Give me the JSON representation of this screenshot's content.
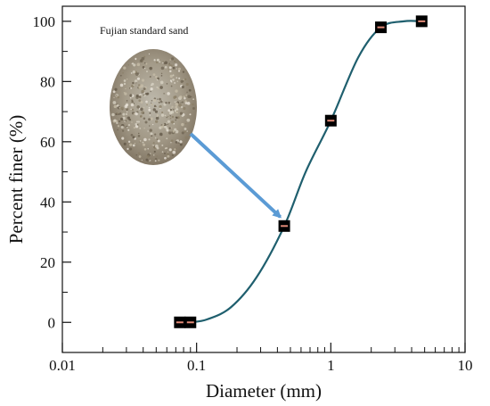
{
  "chart_data": {
    "type": "scatter",
    "xlabel": "Diameter (mm)",
    "ylabel": "Percent finer (%)",
    "xscale": "log",
    "xlim": [
      0.01,
      10
    ],
    "ylim": [
      -10,
      105
    ],
    "x_ticks": [
      0.01,
      0.1,
      1,
      10
    ],
    "x_tick_labels": [
      "0.01",
      "0.1",
      "1",
      "10"
    ],
    "y_ticks": [
      0,
      20,
      40,
      60,
      80,
      100
    ],
    "y_tick_labels": [
      "0",
      "20",
      "40",
      "60",
      "80",
      "100"
    ],
    "grid": false,
    "series": [
      {
        "points": [
          {
            "x": 0.075,
            "y": 0
          },
          {
            "x": 0.09,
            "y": 0
          },
          {
            "x": 0.45,
            "y": 32
          },
          {
            "x": 1.0,
            "y": 67
          },
          {
            "x": 2.36,
            "y": 98
          },
          {
            "x": 4.75,
            "y": 100
          }
        ],
        "marker_color": "#000000"
      }
    ],
    "fit_curve": {
      "points": [
        {
          "x": 0.09,
          "y": 0
        },
        {
          "x": 0.12,
          "y": 1
        },
        {
          "x": 0.18,
          "y": 5
        },
        {
          "x": 0.28,
          "y": 15
        },
        {
          "x": 0.45,
          "y": 32
        },
        {
          "x": 0.65,
          "y": 50
        },
        {
          "x": 1.0,
          "y": 67
        },
        {
          "x": 1.6,
          "y": 88
        },
        {
          "x": 2.36,
          "y": 98
        },
        {
          "x": 3.5,
          "y": 100
        },
        {
          "x": 4.75,
          "y": 100
        }
      ],
      "color": "#1f5f6e"
    },
    "annotation": {
      "text": "Fujian standard sand",
      "arrow_color": "#5b9bd5",
      "arrow_target": {
        "x": 0.42,
        "y": 35
      }
    }
  }
}
